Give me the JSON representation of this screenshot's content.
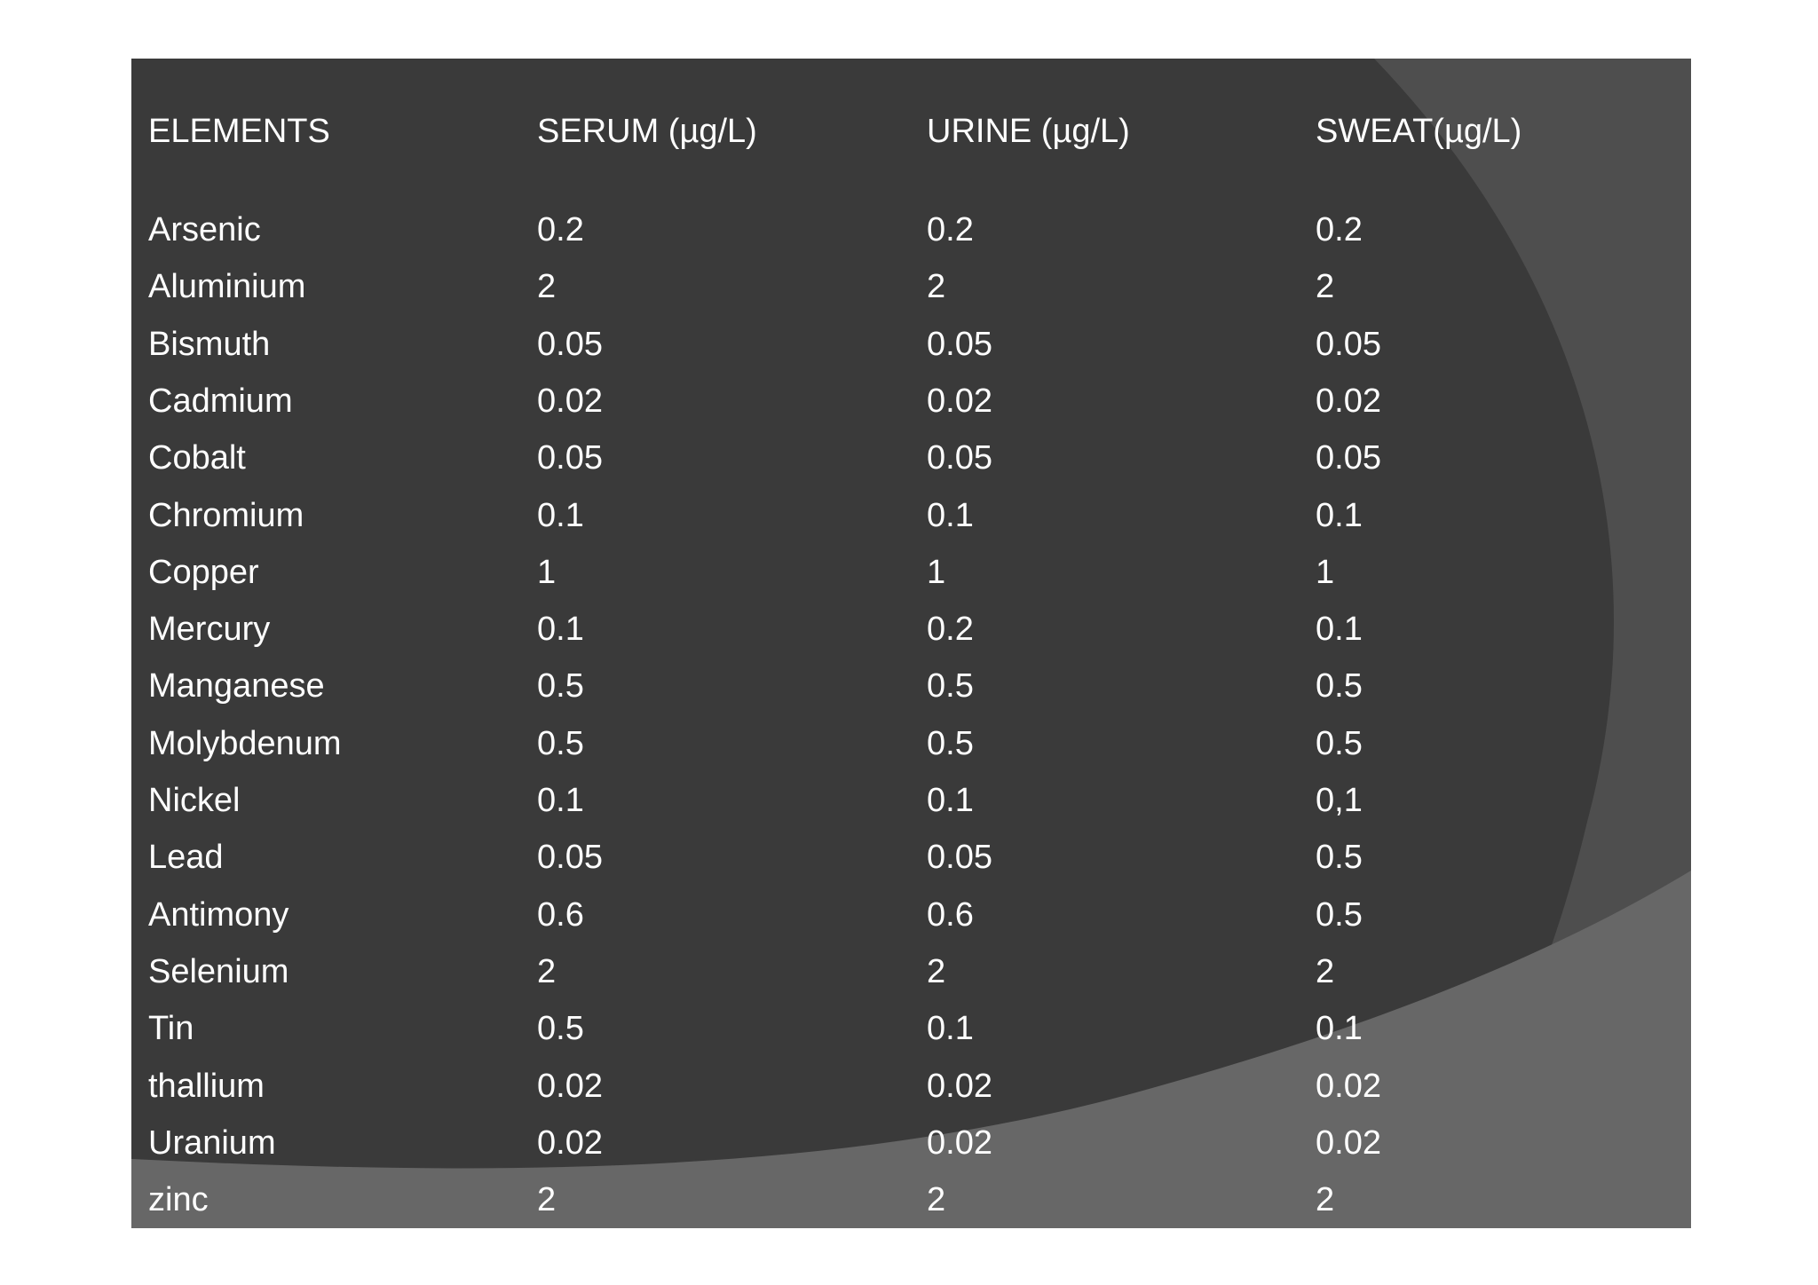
{
  "table": {
    "headers": [
      "ELEMENTS",
      "SERUM (µg/L)",
      "URINE (µg/L)",
      "SWEAT(µg/L)"
    ],
    "rows": [
      [
        "Arsenic",
        "0.2",
        "0.2",
        "0.2"
      ],
      [
        "Aluminium",
        "2",
        "2",
        "2"
      ],
      [
        "Bismuth",
        "0.05",
        "0.05",
        "0.05"
      ],
      [
        "Cadmium",
        "0.02",
        "0.02",
        "0.02"
      ],
      [
        "Cobalt",
        "0.05",
        "0.05",
        "0.05"
      ],
      [
        "Chromium",
        "0.1",
        "0.1",
        "0.1"
      ],
      [
        "Copper",
        "1",
        "1",
        "1"
      ],
      [
        "Mercury",
        "0.1",
        "0.2",
        "0.1"
      ],
      [
        "Manganese",
        "0.5",
        "0.5",
        "0.5"
      ],
      [
        "Molybdenum",
        "0.5",
        "0.5",
        "0.5"
      ],
      [
        "Nickel",
        "0.1",
        "0.1",
        "0,1"
      ],
      [
        "Lead",
        "0.05",
        "0.05",
        "0.5"
      ],
      [
        "Antimony",
        "0.6",
        "0.6",
        "0.5"
      ],
      [
        "Selenium",
        "2",
        "2",
        "2"
      ],
      [
        "Tin",
        "0.5",
        "0.1",
        "0.1"
      ],
      [
        "thallium",
        "0.02",
        "0.02",
        "0.02"
      ],
      [
        "Uranium",
        "0.02",
        "0.02",
        "0.02"
      ],
      [
        "zinc",
        "2",
        "2",
        "2"
      ]
    ]
  },
  "colors": {
    "background": "#3a3a3a",
    "arc_right": "#4e4e4e",
    "arc_bottom": "#676767",
    "text": "#ffffff"
  }
}
